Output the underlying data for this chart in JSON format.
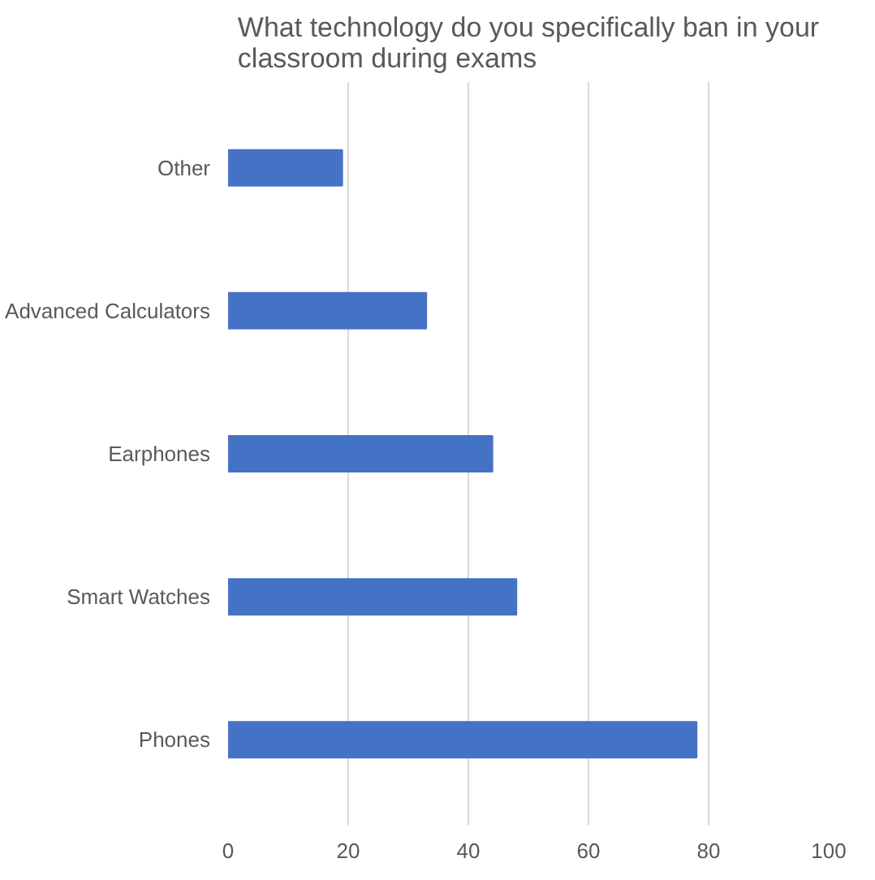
{
  "chart_data": {
    "type": "bar",
    "orientation": "horizontal",
    "title": "What technology do you specifically ban in your classroom during exams",
    "categories": [
      "Other",
      "Advanced Calculators",
      "Earphones",
      "Smart Watches",
      "Phones"
    ],
    "values": [
      19,
      33,
      44,
      48,
      78
    ],
    "color": "#4472c4",
    "xlim": [
      0,
      100
    ],
    "xticks": [
      0,
      20,
      40,
      60,
      80,
      100
    ],
    "grid": "x"
  }
}
